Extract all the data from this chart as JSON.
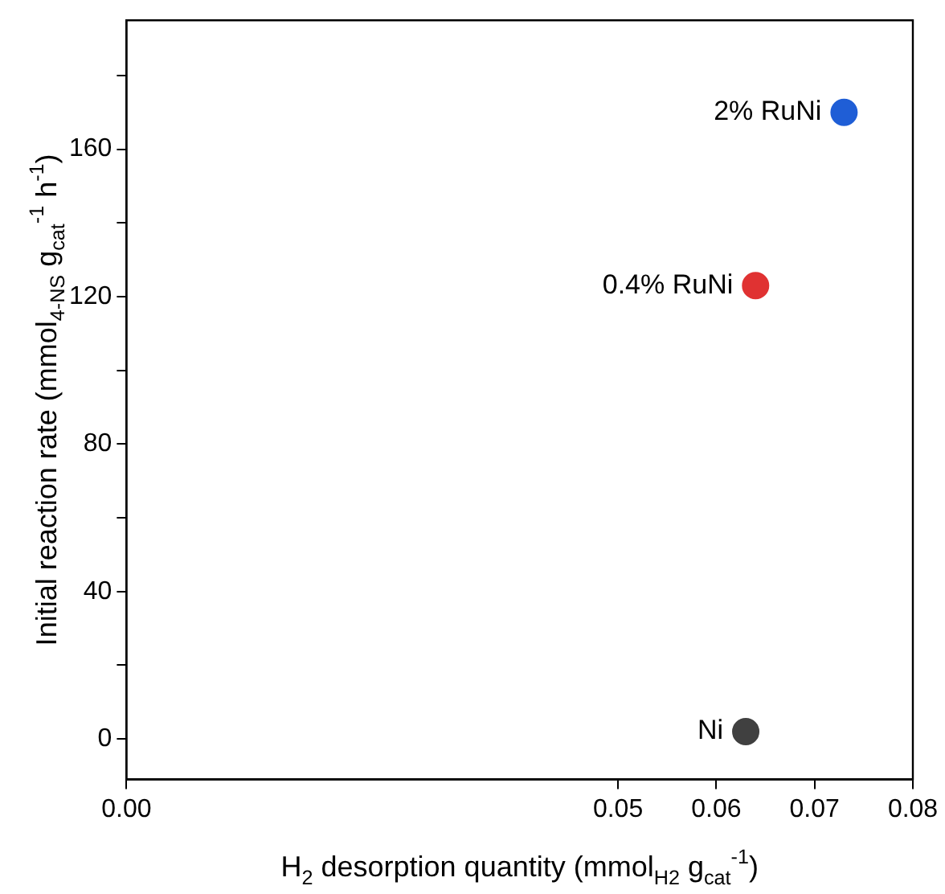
{
  "chart_data": {
    "type": "scatter",
    "xlabel": "H$_{2}$ desorption quantity (mmol$_{H2}$ g$_{cat}$$^{-1}$)",
    "ylabel": "Initial reaction rate (mmol$_{4-NS}$ g$_{cat}$$^{-1}$ h$^{-1}$)",
    "xlim": [
      0,
      0.08
    ],
    "xticks": [
      {
        "value": 0,
        "label": "0.00"
      },
      {
        "value": 0.05,
        "label": "0.05"
      },
      {
        "value": 0.06,
        "label": "0.06"
      },
      {
        "value": 0.07,
        "label": "0.07"
      },
      {
        "value": 0.08,
        "label": "0.08"
      }
    ],
    "ylim": [
      -11,
      195
    ],
    "yticks": [
      0,
      {
        "value": 20,
        "label": null
      },
      40,
      {
        "value": 60,
        "label": null
      },
      80,
      {
        "value": 100,
        "label": null
      },
      120,
      {
        "value": 140,
        "label": null
      },
      160,
      {
        "value": 180,
        "label": null
      }
    ],
    "series": [
      {
        "name": "Ni",
        "color": "#404040",
        "x": [
          0.063
        ],
        "values": [
          2
        ]
      },
      {
        "name": "0.4% RuNi",
        "color": "#e03232",
        "x": [
          0.064
        ],
        "values": [
          123
        ]
      },
      {
        "name": "2% RuNi",
        "color": "#1f5ed6",
        "x": [
          0.073
        ],
        "values": [
          170
        ]
      }
    ],
    "marker": "circle",
    "grid": false,
    "legend": false
  }
}
